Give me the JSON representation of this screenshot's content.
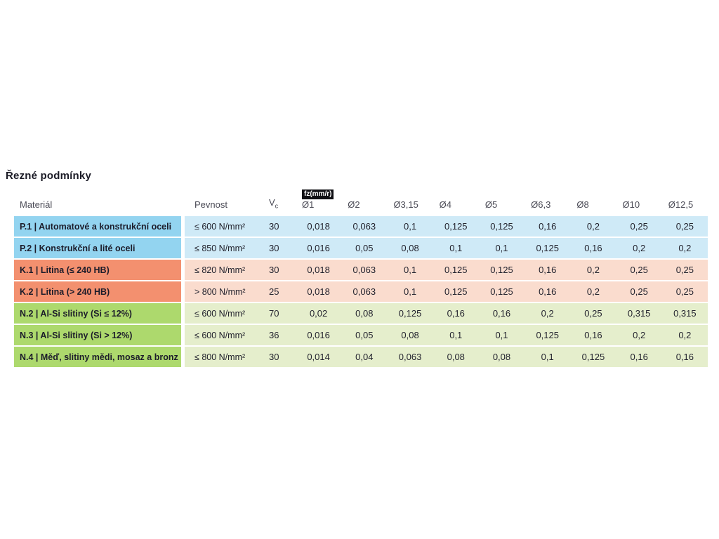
{
  "page": {
    "title": "Řezné podmínky"
  },
  "table": {
    "fz_badge": "fz(mm/r)",
    "headers": {
      "material": "Materiál",
      "pevnost": "Pevnost",
      "vc_main": "V",
      "vc_sub": "c",
      "diameters": [
        "Ø1",
        "Ø2",
        "Ø3,15",
        "Ø4",
        "Ø5",
        "Ø6,3",
        "Ø8",
        "Ø10",
        "Ø12,5"
      ]
    },
    "group_colors": {
      "P": {
        "solid": "#93d4f0",
        "tint": "#cfeaf7"
      },
      "K": {
        "solid": "#f3906f",
        "tint": "#fadcce"
      },
      "N": {
        "solid": "#add96d",
        "tint": "#e5eecc"
      }
    },
    "rows": [
      {
        "group": "P",
        "material": "P.1 | Automatové a konstrukční oceli",
        "pevnost": "≤ 600 N/mm²",
        "vc": "30",
        "values": [
          "0,018",
          "0,063",
          "0,1",
          "0,125",
          "0,125",
          "0,16",
          "0,2",
          "0,25",
          "0,25"
        ]
      },
      {
        "group": "P",
        "material": "P.2 | Konstrukční a lité oceli",
        "pevnost": "≤ 850 N/mm²",
        "vc": "30",
        "values": [
          "0,016",
          "0,05",
          "0,08",
          "0,1",
          "0,1",
          "0,125",
          "0,16",
          "0,2",
          "0,2"
        ]
      },
      {
        "group": "K",
        "material": "K.1 | Litina (≤ 240 HB)",
        "pevnost": "≤ 820 N/mm²",
        "vc": "30",
        "values": [
          "0,018",
          "0,063",
          "0,1",
          "0,125",
          "0,125",
          "0,16",
          "0,2",
          "0,25",
          "0,25"
        ]
      },
      {
        "group": "K",
        "material": "K.2 | Litina (> 240 HB)",
        "pevnost": "> 800 N/mm²",
        "vc": "25",
        "values": [
          "0,018",
          "0,063",
          "0,1",
          "0,125",
          "0,125",
          "0,16",
          "0,2",
          "0,25",
          "0,25"
        ]
      },
      {
        "group": "N",
        "material": "N.2 | Al-Si slitiny (Si ≤ 12%)",
        "pevnost": "≤ 600 N/mm²",
        "vc": "70",
        "values": [
          "0,02",
          "0,08",
          "0,125",
          "0,16",
          "0,16",
          "0,2",
          "0,25",
          "0,315",
          "0,315"
        ]
      },
      {
        "group": "N",
        "material": "N.3 | Al-Si slitiny (Si > 12%)",
        "pevnost": "≤ 600 N/mm²",
        "vc": "36",
        "values": [
          "0,016",
          "0,05",
          "0,08",
          "0,1",
          "0,1",
          "0,125",
          "0,16",
          "0,2",
          "0,2"
        ]
      },
      {
        "group": "N",
        "material": "N.4 | Měď, slitiny mědi, mosaz a bronz",
        "pevnost": "≤ 800 N/mm²",
        "vc": "30",
        "values": [
          "0,014",
          "0,04",
          "0,063",
          "0,08",
          "0,08",
          "0,1",
          "0,125",
          "0,16",
          "0,16"
        ]
      }
    ]
  }
}
